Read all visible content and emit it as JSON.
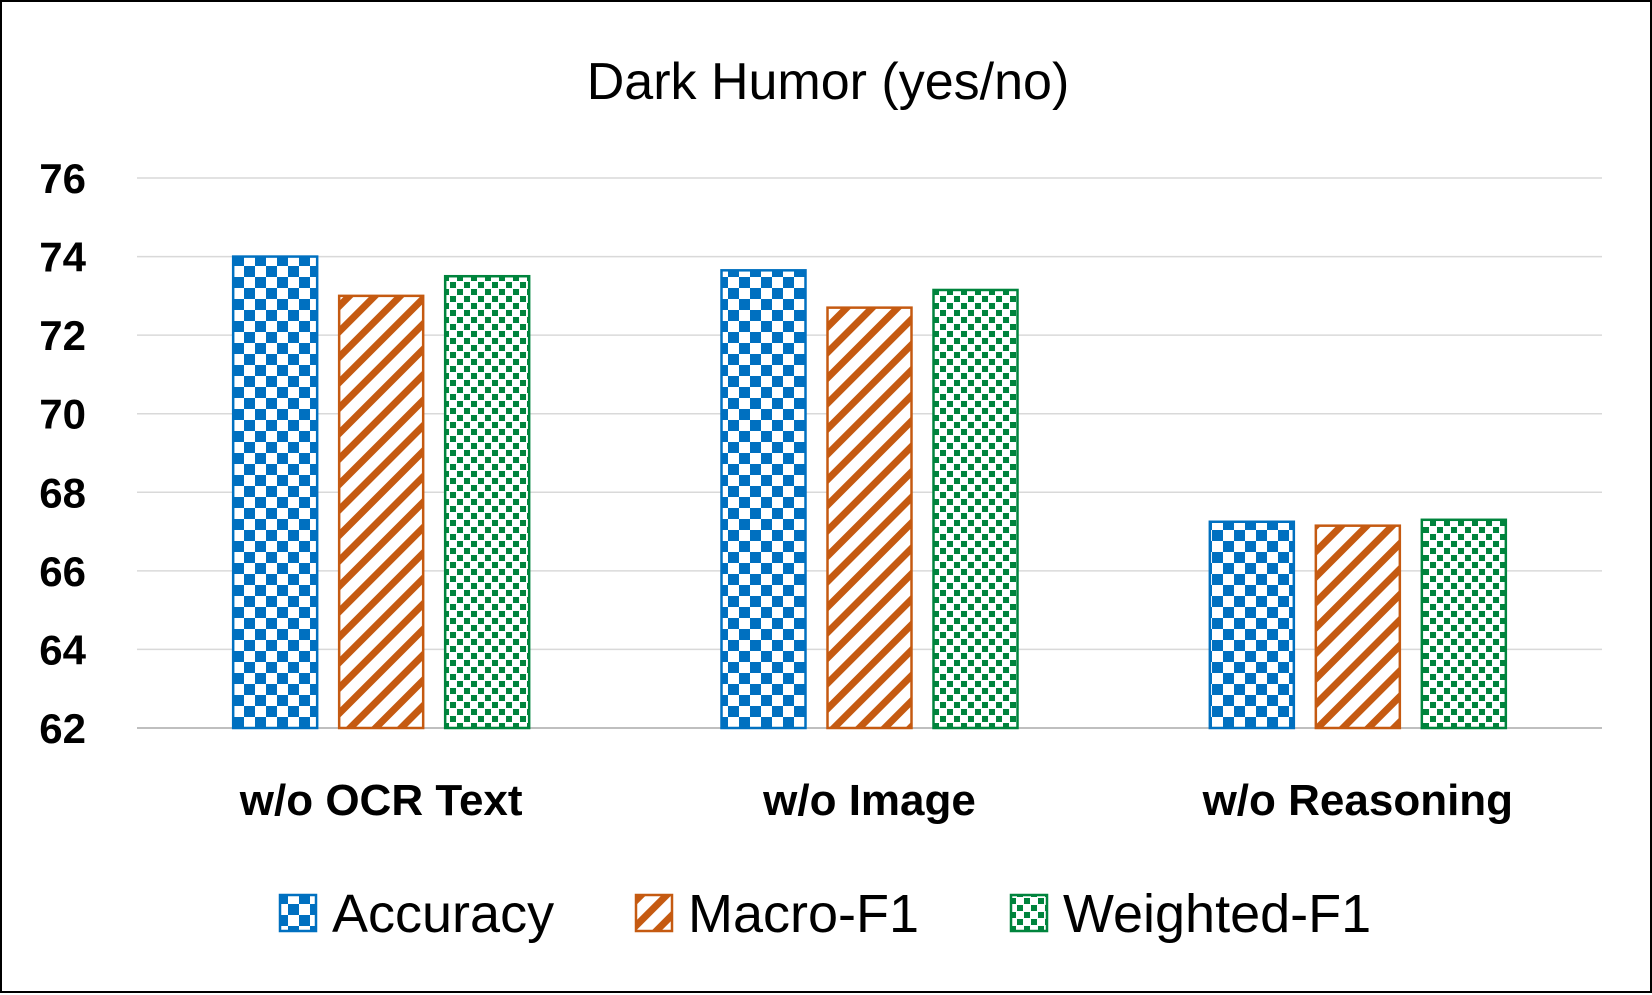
{
  "chart_data": {
    "type": "bar",
    "title": "Dark Humor (yes/no)",
    "xlabel": "",
    "ylabel": "",
    "categories": [
      "w/o OCR Text",
      "w/o Image",
      "w/o Reasoning"
    ],
    "series": [
      {
        "name": "Accuracy",
        "values": [
          74.0,
          73.65,
          67.25
        ],
        "color": "#0070C0",
        "pattern": "checker"
      },
      {
        "name": "Macro-F1",
        "values": [
          73.0,
          72.7,
          67.15
        ],
        "color": "#C55A11",
        "pattern": "diagonal"
      },
      {
        "name": "Weighted-F1",
        "values": [
          73.5,
          73.15,
          67.3
        ],
        "color": "#00843D",
        "pattern": "dots"
      }
    ],
    "ylim": [
      62,
      76
    ],
    "yticks": [
      "62",
      "64",
      "66",
      "68",
      "70",
      "72",
      "74",
      "76"
    ],
    "grid": true,
    "legend_position": "bottom"
  }
}
